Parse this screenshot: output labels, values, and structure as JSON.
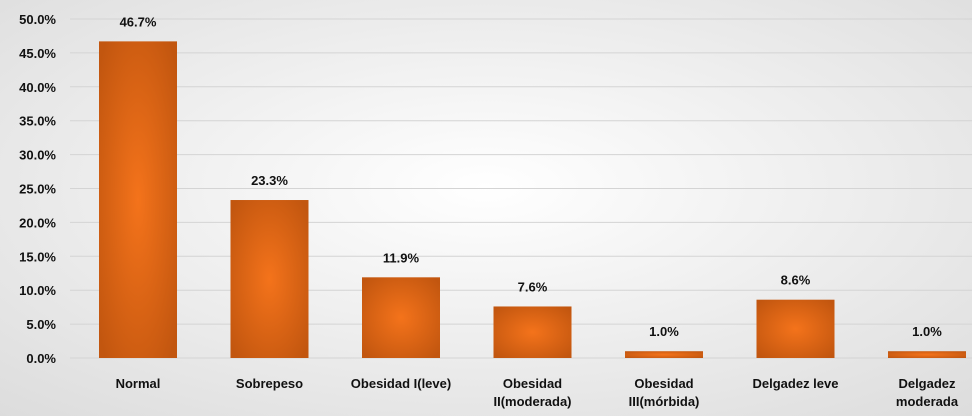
{
  "chart_data": {
    "type": "bar",
    "title": "",
    "xlabel": "",
    "ylabel": "",
    "categories": [
      "Normal",
      "Sobrepeso",
      "Obesidad I(leve)",
      "Obesidad II(moderada)",
      "Obesidad III(mórbida)",
      "Delgadez leve",
      "Delgadez moderada"
    ],
    "category_lines": [
      [
        "Normal"
      ],
      [
        "Sobrepeso"
      ],
      [
        "Obesidad I(leve)"
      ],
      [
        "Obesidad",
        "II(moderada)"
      ],
      [
        "Obesidad",
        "III(mórbida)"
      ],
      [
        "Delgadez leve"
      ],
      [
        "Delgadez",
        "moderada"
      ]
    ],
    "values": [
      46.7,
      23.3,
      11.9,
      7.6,
      1.0,
      8.6,
      1.0
    ],
    "data_labels": [
      "46.7%",
      "23.3%",
      "11.9%",
      "7.6%",
      "1.0%",
      "8.6%",
      "1.0%"
    ],
    "ylim": [
      0,
      50
    ],
    "y_ticks": [
      0,
      5,
      10,
      15,
      20,
      25,
      30,
      35,
      40,
      45,
      50
    ],
    "y_tick_labels": [
      "0.0%",
      "5.0%",
      "10.0%",
      "15.0%",
      "20.0%",
      "25.0%",
      "30.0%",
      "35.0%",
      "40.0%",
      "45.0%",
      "50.0%"
    ],
    "grid": true,
    "legend": "none",
    "colors": {
      "bar_center": "#f4731b",
      "bar_edge": "#c2560f",
      "background_center": "#ffffff",
      "background_edge": "#dcdcdc",
      "gridline": "#d4d4d4",
      "text": "#111111"
    }
  }
}
